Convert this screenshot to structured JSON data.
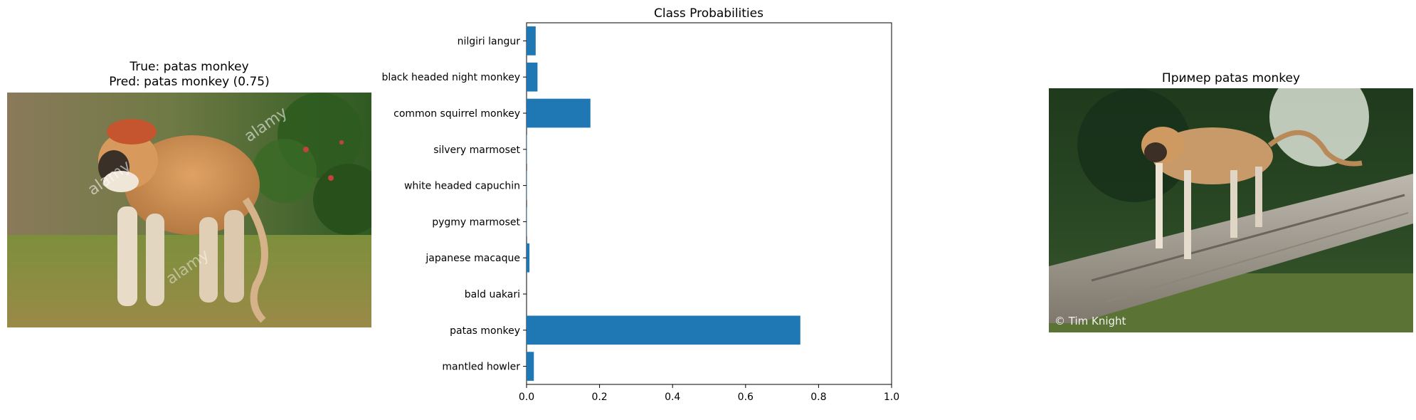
{
  "left_panel": {
    "title_line1": "True: patas monkey",
    "title_line2": "Pred: patas monkey (0.75)",
    "watermark": "alamy"
  },
  "right_panel": {
    "title": "Пример patas monkey",
    "credit": "© Tim Knight"
  },
  "chart_data": {
    "type": "bar",
    "orientation": "horizontal",
    "title": "Class Probabilities",
    "xlabel": "",
    "ylabel": "",
    "categories": [
      "mantled howler",
      "patas monkey",
      "bald uakari",
      "japanese macaque",
      "pygmy marmoset",
      "white headed capuchin",
      "silvery marmoset",
      "common squirrel monkey",
      "black headed night monkey",
      "nilgiri langur"
    ],
    "values": [
      0.02,
      0.75,
      0.0,
      0.008,
      0.001,
      0.001,
      0.001,
      0.175,
      0.03,
      0.025
    ],
    "xlim": [
      0,
      1.0
    ],
    "xticks": [
      "0.0",
      "0.2",
      "0.4",
      "0.6",
      "0.8",
      "1.0"
    ],
    "bar_color": "#1f77b4",
    "grid": false
  }
}
